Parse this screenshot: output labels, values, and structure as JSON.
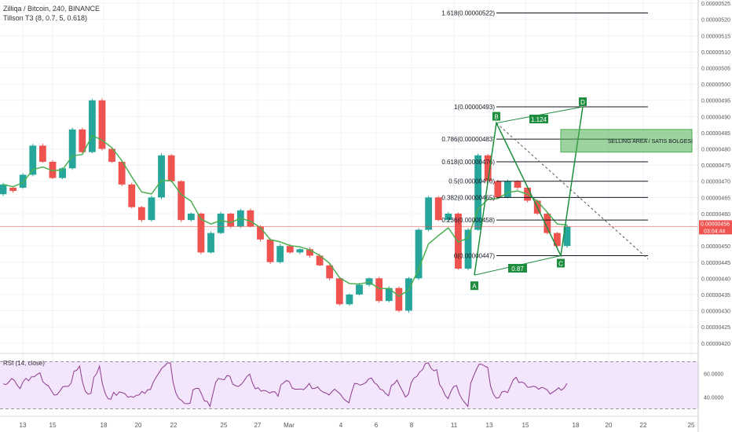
{
  "header": {
    "symbol_line": "Zilliqa / Bitcoin, 240, BINANCE",
    "indicator_line": "Tillson T3 (8, 0.7, 5, 0.618)"
  },
  "rsi": {
    "title": "RSI (14, close)",
    "levels": [
      "60.0000",
      "40.0000"
    ],
    "band_color": "#f3e5fb",
    "line_color": "#8e3b8e"
  },
  "price_scale": [
    "0.00000525",
    "0.00000520",
    "0.00000515",
    "0.00000510",
    "0.00000505",
    "0.00000500",
    "0.00000495",
    "0.00000490",
    "0.00000485",
    "0.00000480",
    "0.00000475",
    "0.00000470",
    "0.00000465",
    "0.00000460",
    "0.00000455",
    "0.00000450",
    "0.00000445",
    "0.00000440",
    "0.00000435",
    "0.00000430",
    "0.00000425",
    "0.00000420"
  ],
  "price_tag": {
    "price": "0.00000456",
    "countdown": "03:04:44",
    "color": "#ef5350"
  },
  "time_axis": [
    "13",
    "15",
    "18",
    "20",
    "22",
    "25",
    "27",
    "Mar",
    "4",
    "6",
    "8",
    "11",
    "13",
    "15",
    "18",
    "20",
    "22",
    "25"
  ],
  "fib_levels": [
    {
      "label": "1.618(0.00000522)",
      "value": 5.22e-06
    },
    {
      "label": "1(0.00000493)",
      "value": 4.93e-06
    },
    {
      "label": "0.786(0.00000483)",
      "value": 4.83e-06
    },
    {
      "label": "0.618(0.00000476)",
      "value": 4.76e-06
    },
    {
      "label": "0.5(0.00000470)",
      "value": 4.7e-06
    },
    {
      "label": "0.382(0.00000465)",
      "value": 4.65e-06
    },
    {
      "label": "0.236(0.00000458)",
      "value": 4.58e-06
    },
    {
      "label": "0(0.00000447)",
      "value": 4.47e-06
    }
  ],
  "pattern": {
    "points": [
      "A",
      "B",
      "C",
      "D"
    ],
    "ratios": [
      "1.124",
      "0.87"
    ],
    "color": "#1e8e3e"
  },
  "selling_area": {
    "label": "SELLING  AREA / SATIS BOLGESI",
    "color": "#4caf50"
  },
  "colors": {
    "up": "#26a69a",
    "down": "#ef5350",
    "t3": "#4caf50"
  },
  "chart_data": {
    "type": "candlestick",
    "title": "Zilliqa / Bitcoin, 240, BINANCE",
    "timeframe": "240",
    "exchange": "BINANCE",
    "last_price": 4.56e-06,
    "ylim": [
      4.18e-06,
      5.26e-06
    ],
    "x_tick_labels": [
      "13",
      "15",
      "18",
      "20",
      "22",
      "25",
      "27",
      "Mar",
      "4",
      "6",
      "8",
      "11",
      "13",
      "15",
      "18",
      "20",
      "22",
      "25"
    ],
    "price_path": [
      [
        4.66e-06,
        4.69e-06
      ],
      [
        4.68e-06,
        4.67e-06
      ],
      [
        4.68e-06,
        4.72e-06
      ],
      [
        4.72e-06,
        4.81e-06
      ],
      [
        4.81e-06,
        4.76e-06
      ],
      [
        4.76e-06,
        4.71e-06
      ],
      [
        4.71e-06,
        4.74e-06
      ],
      [
        4.74e-06,
        4.86e-06
      ],
      [
        4.86e-06,
        4.79e-06
      ],
      [
        4.79e-06,
        4.95e-06
      ],
      [
        4.95e-06,
        4.8e-06
      ],
      [
        4.8e-06,
        4.76e-06
      ],
      [
        4.76e-06,
        4.69e-06
      ],
      [
        4.69e-06,
        4.62e-06
      ],
      [
        4.62e-06,
        4.58e-06
      ],
      [
        4.58e-06,
        4.65e-06
      ],
      [
        4.65e-06,
        4.78e-06
      ],
      [
        4.78e-06,
        4.7e-06
      ],
      [
        4.7e-06,
        4.58e-06
      ],
      [
        4.58e-06,
        4.6e-06
      ],
      [
        4.6e-06,
        4.48e-06
      ],
      [
        4.48e-06,
        4.54e-06
      ],
      [
        4.54e-06,
        4.6e-06
      ],
      [
        4.6e-06,
        4.56e-06
      ],
      [
        4.56e-06,
        4.61e-06
      ],
      [
        4.61e-06,
        4.56e-06
      ],
      [
        4.56e-06,
        4.52e-06
      ],
      [
        4.52e-06,
        4.45e-06
      ],
      [
        4.45e-06,
        4.5e-06
      ],
      [
        4.5e-06,
        4.48e-06
      ],
      [
        4.48e-06,
        4.49e-06
      ],
      [
        4.49e-06,
        4.47e-06
      ],
      [
        4.47e-06,
        4.44e-06
      ],
      [
        4.44e-06,
        4.4e-06
      ],
      [
        4.4e-06,
        4.32e-06
      ],
      [
        4.32e-06,
        4.35e-06
      ],
      [
        4.35e-06,
        4.38e-06
      ],
      [
        4.38e-06,
        4.4e-06
      ],
      [
        4.4e-06,
        4.33e-06
      ],
      [
        4.33e-06,
        4.37e-06
      ],
      [
        4.37e-06,
        4.3e-06
      ],
      [
        4.3e-06,
        4.4e-06
      ],
      [
        4.4e-06,
        4.55e-06
      ],
      [
        4.55e-06,
        4.65e-06
      ],
      [
        4.65e-06,
        4.58e-06
      ],
      [
        4.58e-06,
        4.6e-06
      ],
      [
        4.6e-06,
        4.43e-06
      ],
      [
        4.43e-06,
        4.55e-06
      ],
      [
        4.55e-06,
        4.78e-06
      ],
      [
        4.78e-06,
        4.7e-06
      ],
      [
        4.7e-06,
        4.65e-06
      ],
      [
        4.65e-06,
        4.7e-06
      ],
      [
        4.7e-06,
        4.68e-06
      ],
      [
        4.68e-06,
        4.64e-06
      ],
      [
        4.64e-06,
        4.6e-06
      ],
      [
        4.6e-06,
        4.54e-06
      ],
      [
        4.54e-06,
        4.5e-06
      ],
      [
        4.5e-06,
        4.56e-06
      ]
    ],
    "fibonacci_retracement": [
      {
        "ratio": 1.618,
        "price": 5.22e-06
      },
      {
        "ratio": 1,
        "price": 4.93e-06
      },
      {
        "ratio": 0.786,
        "price": 4.83e-06
      },
      {
        "ratio": 0.618,
        "price": 4.76e-06
      },
      {
        "ratio": 0.5,
        "price": 4.7e-06
      },
      {
        "ratio": 0.382,
        "price": 4.65e-06
      },
      {
        "ratio": 0.236,
        "price": 4.58e-06
      },
      {
        "ratio": 0,
        "price": 4.47e-06
      }
    ],
    "harmonic_pattern": {
      "A": 4.41e-06,
      "B": 4.88e-06,
      "C": 4.47e-06,
      "D": 4.93e-06,
      "AB_to_BD_ratio": 1.124,
      "AC_ratio": 0.87
    },
    "selling_area": {
      "price_high": 4.86e-06,
      "price_low": 4.79e-06
    },
    "indicators": [
      {
        "name": "Tillson T3",
        "params": [
          8,
          0.7,
          5,
          0.618
        ]
      },
      {
        "name": "RSI",
        "params": [
          14,
          "close"
        ],
        "levels": [
          60,
          40
        ]
      }
    ]
  }
}
